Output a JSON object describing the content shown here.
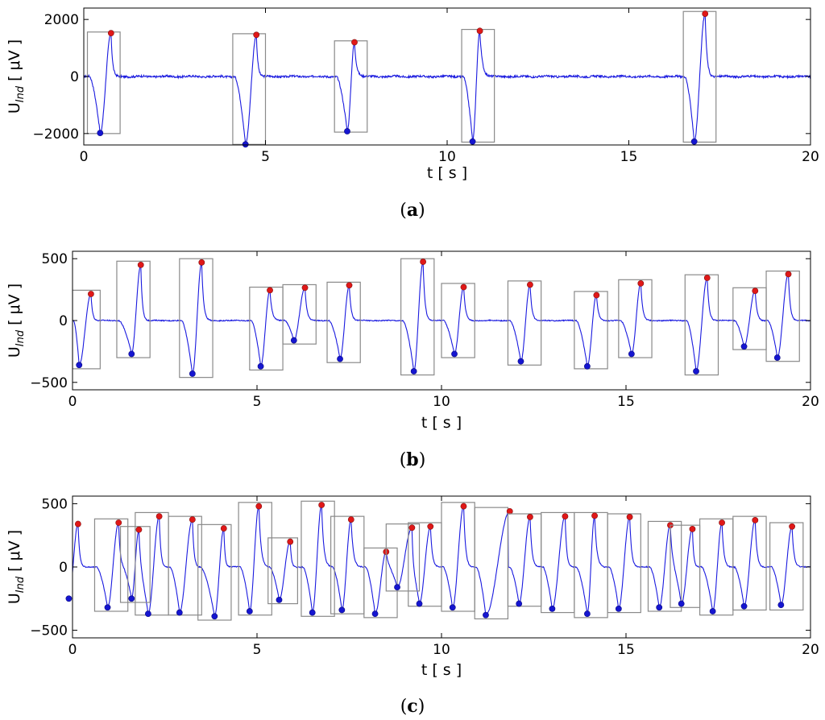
{
  "chart_data": [
    {
      "id": "a",
      "type": "line",
      "caption": "a",
      "xlabel": "t [ s ]",
      "ylabel_main": "U",
      "ylabel_sub": "Ind",
      "ylabel_unit": "[ μV ]",
      "xlim": [
        0,
        20
      ],
      "ylim": [
        -2400,
        2400
      ],
      "xticks": [
        0,
        5,
        10,
        15,
        20
      ],
      "yticks": [
        -2000,
        0,
        2000
      ],
      "ytick_labels": [
        "−2000",
        "0",
        "2000"
      ],
      "line_color": "#1a1adf",
      "baseline_noise": 35,
      "events": [
        {
          "x0": 0.1,
          "x1": 1.0,
          "min_t": 0.45,
          "min_v": -1980,
          "max_t": 0.75,
          "max_v": 1520,
          "box": [
            -2000,
            1560
          ]
        },
        {
          "x0": 4.1,
          "x1": 5.0,
          "min_t": 4.45,
          "min_v": -2380,
          "max_t": 4.75,
          "max_v": 1460,
          "box": [
            -2380,
            1500
          ]
        },
        {
          "x0": 6.9,
          "x1": 7.8,
          "min_t": 7.25,
          "min_v": -1920,
          "max_t": 7.45,
          "max_v": 1200,
          "box": [
            -1950,
            1250
          ]
        },
        {
          "x0": 10.4,
          "x1": 11.3,
          "min_t": 10.7,
          "min_v": -2280,
          "max_t": 10.9,
          "max_v": 1600,
          "box": [
            -2300,
            1650
          ]
        },
        {
          "x0": 16.5,
          "x1": 17.4,
          "min_t": 16.8,
          "min_v": -2280,
          "max_t": 17.1,
          "max_v": 2200,
          "box": [
            -2300,
            2280
          ]
        }
      ]
    },
    {
      "id": "b",
      "type": "line",
      "caption": "b",
      "xlabel": "t [ s ]",
      "ylabel_main": "U",
      "ylabel_sub": "Ind",
      "ylabel_unit": "[ μV ]",
      "xlim": [
        0,
        20
      ],
      "ylim": [
        -560,
        560
      ],
      "xticks": [
        0,
        5,
        10,
        15,
        20
      ],
      "yticks": [
        -500,
        0,
        500
      ],
      "ytick_labels": [
        "−500",
        "0",
        "500"
      ],
      "line_color": "#1a1adf",
      "baseline_noise": 4,
      "events": [
        {
          "x0": 0.0,
          "x1": 0.75,
          "min_t": 0.18,
          "min_v": -360,
          "max_t": 0.5,
          "max_v": 215,
          "box": [
            -390,
            245
          ]
        },
        {
          "x0": 1.2,
          "x1": 2.1,
          "min_t": 1.6,
          "min_v": -270,
          "max_t": 1.85,
          "max_v": 450,
          "box": [
            -300,
            480
          ]
        },
        {
          "x0": 2.9,
          "x1": 3.8,
          "min_t": 3.25,
          "min_v": -430,
          "max_t": 3.5,
          "max_v": 470,
          "box": [
            -460,
            500
          ]
        },
        {
          "x0": 4.8,
          "x1": 5.7,
          "min_t": 5.1,
          "min_v": -370,
          "max_t": 5.35,
          "max_v": 245,
          "box": [
            -400,
            270
          ]
        },
        {
          "x0": 5.7,
          "x1": 6.6,
          "min_t": 6.0,
          "min_v": -160,
          "max_t": 6.3,
          "max_v": 265,
          "box": [
            -190,
            290
          ]
        },
        {
          "x0": 6.9,
          "x1": 7.8,
          "min_t": 7.25,
          "min_v": -310,
          "max_t": 7.5,
          "max_v": 285,
          "box": [
            -340,
            310
          ]
        },
        {
          "x0": 8.9,
          "x1": 9.8,
          "min_t": 9.25,
          "min_v": -410,
          "max_t": 9.5,
          "max_v": 475,
          "box": [
            -440,
            500
          ]
        },
        {
          "x0": 10.0,
          "x1": 10.9,
          "min_t": 10.35,
          "min_v": -270,
          "max_t": 10.6,
          "max_v": 270,
          "box": [
            -300,
            300
          ]
        },
        {
          "x0": 11.8,
          "x1": 12.7,
          "min_t": 12.15,
          "min_v": -330,
          "max_t": 12.4,
          "max_v": 290,
          "box": [
            -360,
            320
          ]
        },
        {
          "x0": 13.6,
          "x1": 14.5,
          "min_t": 13.95,
          "min_v": -370,
          "max_t": 14.2,
          "max_v": 205,
          "box": [
            -390,
            235
          ]
        },
        {
          "x0": 14.8,
          "x1": 15.7,
          "min_t": 15.15,
          "min_v": -270,
          "max_t": 15.4,
          "max_v": 300,
          "box": [
            -300,
            330
          ]
        },
        {
          "x0": 16.6,
          "x1": 17.5,
          "min_t": 16.9,
          "min_v": -410,
          "max_t": 17.2,
          "max_v": 345,
          "box": [
            -440,
            370
          ]
        },
        {
          "x0": 17.9,
          "x1": 18.8,
          "min_t": 18.2,
          "min_v": -210,
          "max_t": 18.5,
          "max_v": 240,
          "box": [
            -235,
            265
          ]
        },
        {
          "x0": 18.8,
          "x1": 19.7,
          "min_t": 19.1,
          "min_v": -300,
          "max_t": 19.4,
          "max_v": 375,
          "box": [
            -330,
            400
          ]
        }
      ]
    },
    {
      "id": "c",
      "type": "line",
      "caption": "c",
      "xlabel": "t [ s ]",
      "ylabel_main": "U",
      "ylabel_sub": "Ind",
      "ylabel_unit": "[ μV ]",
      "xlim": [
        0,
        20
      ],
      "ylim": [
        -560,
        560
      ],
      "xticks": [
        0,
        5,
        10,
        15,
        20
      ],
      "yticks": [
        -500,
        0,
        500
      ],
      "ytick_labels": [
        "−500",
        "0",
        "500"
      ],
      "line_color": "#1a1adf",
      "baseline_noise": 4,
      "events": [
        {
          "x0": -0.3,
          "x1": 0.4,
          "min_t": -0.1,
          "min_v": -250,
          "max_t": 0.15,
          "max_v": 340,
          "box": [
            -280,
            370
          ],
          "nobox": true
        },
        {
          "x0": 0.6,
          "x1": 1.5,
          "min_t": 0.95,
          "min_v": -320,
          "max_t": 1.25,
          "max_v": 350,
          "box": [
            -350,
            380
          ]
        },
        {
          "x0": 1.3,
          "x1": 2.1,
          "min_t": 1.6,
          "min_v": -250,
          "max_t": 1.8,
          "max_v": 295,
          "box": [
            -280,
            320
          ]
        },
        {
          "x0": 1.7,
          "x1": 2.6,
          "min_t": 2.05,
          "min_v": -370,
          "max_t": 2.35,
          "max_v": 400,
          "box": [
            -380,
            430
          ]
        },
        {
          "x0": 2.6,
          "x1": 3.5,
          "min_t": 2.9,
          "min_v": -360,
          "max_t": 3.25,
          "max_v": 375,
          "box": [
            -380,
            400
          ]
        },
        {
          "x0": 3.4,
          "x1": 4.3,
          "min_t": 3.85,
          "min_v": -390,
          "max_t": 4.1,
          "max_v": 305,
          "box": [
            -420,
            335
          ]
        },
        {
          "x0": 4.5,
          "x1": 5.4,
          "min_t": 4.8,
          "min_v": -350,
          "max_t": 5.05,
          "max_v": 480,
          "box": [
            -380,
            510
          ]
        },
        {
          "x0": 5.3,
          "x1": 6.1,
          "min_t": 5.6,
          "min_v": -260,
          "max_t": 5.9,
          "max_v": 200,
          "box": [
            -290,
            230
          ]
        },
        {
          "x0": 6.2,
          "x1": 7.1,
          "min_t": 6.5,
          "min_v": -360,
          "max_t": 6.75,
          "max_v": 490,
          "box": [
            -390,
            520
          ]
        },
        {
          "x0": 7.0,
          "x1": 7.9,
          "min_t": 7.3,
          "min_v": -340,
          "max_t": 7.55,
          "max_v": 375,
          "box": [
            -370,
            400
          ]
        },
        {
          "x0": 7.9,
          "x1": 8.8,
          "min_t": 8.2,
          "min_v": -370,
          "max_t": 8.5,
          "max_v": 120,
          "box": [
            -400,
            150
          ]
        },
        {
          "x0": 8.5,
          "x1": 9.4,
          "min_t": 8.8,
          "min_v": -160,
          "max_t": 9.2,
          "max_v": 310,
          "box": [
            -190,
            340
          ]
        },
        {
          "x0": 9.1,
          "x1": 10.0,
          "min_t": 9.4,
          "min_v": -290,
          "max_t": 9.7,
          "max_v": 320,
          "box": [
            -310,
            350
          ]
        },
        {
          "x0": 10.0,
          "x1": 10.9,
          "min_t": 10.3,
          "min_v": -320,
          "max_t": 10.6,
          "max_v": 480,
          "box": [
            -350,
            510
          ]
        },
        {
          "x0": 10.9,
          "x1": 11.8,
          "min_t": 11.2,
          "min_v": -380,
          "max_t": 11.85,
          "max_v": 440,
          "box": [
            -410,
            470
          ]
        },
        {
          "x0": 11.8,
          "x1": 12.7,
          "min_t": 12.1,
          "min_v": -290,
          "max_t": 12.4,
          "max_v": 395,
          "box": [
            -310,
            420
          ]
        },
        {
          "x0": 12.7,
          "x1": 13.6,
          "min_t": 13.0,
          "min_v": -330,
          "max_t": 13.35,
          "max_v": 400,
          "box": [
            -360,
            430
          ]
        },
        {
          "x0": 13.6,
          "x1": 14.5,
          "min_t": 13.95,
          "min_v": -370,
          "max_t": 14.15,
          "max_v": 405,
          "box": [
            -400,
            430
          ]
        },
        {
          "x0": 14.5,
          "x1": 15.4,
          "min_t": 14.8,
          "min_v": -330,
          "max_t": 15.1,
          "max_v": 395,
          "box": [
            -360,
            420
          ]
        },
        {
          "x0": 15.6,
          "x1": 16.5,
          "min_t": 15.9,
          "min_v": -320,
          "max_t": 16.2,
          "max_v": 330,
          "box": [
            -350,
            360
          ]
        },
        {
          "x0": 16.2,
          "x1": 17.0,
          "min_t": 16.5,
          "min_v": -290,
          "max_t": 16.8,
          "max_v": 300,
          "box": [
            -320,
            330
          ]
        },
        {
          "x0": 17.0,
          "x1": 17.9,
          "min_t": 17.35,
          "min_v": -350,
          "max_t": 17.6,
          "max_v": 350,
          "box": [
            -380,
            380
          ]
        },
        {
          "x0": 17.9,
          "x1": 18.8,
          "min_t": 18.2,
          "min_v": -310,
          "max_t": 18.5,
          "max_v": 370,
          "box": [
            -340,
            400
          ]
        },
        {
          "x0": 18.9,
          "x1": 19.8,
          "min_t": 19.2,
          "min_v": -300,
          "max_t": 19.5,
          "max_v": 320,
          "box": [
            -340,
            350
          ]
        }
      ]
    }
  ]
}
